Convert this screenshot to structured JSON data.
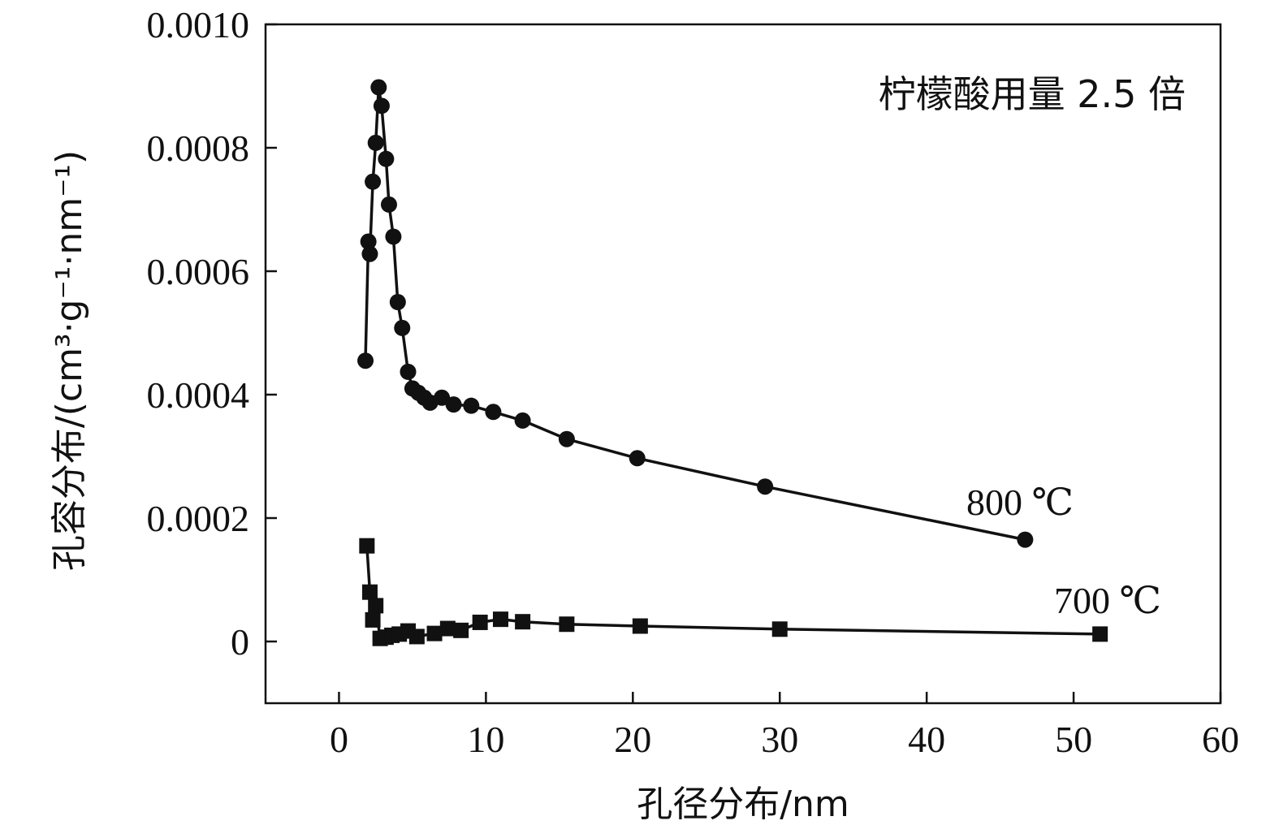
{
  "chart_data": {
    "type": "line",
    "title": "",
    "annotation": "柠檬酸用量 2.5 倍",
    "xlabel": "孔径分布/nm",
    "ylabel": "孔容分布/(cm³·g⁻¹·nm⁻¹)",
    "xlim": [
      -5,
      60
    ],
    "ylim": [
      -0.0001,
      0.001
    ],
    "xticks": [
      0,
      10,
      20,
      30,
      40,
      50,
      60
    ],
    "yticks": [
      0,
      0.0002,
      0.0004,
      0.0006,
      0.0008,
      0.001
    ],
    "xtick_labels": [
      "0",
      "10",
      "20",
      "30",
      "40",
      "50",
      "60"
    ],
    "ytick_labels": [
      "0",
      "0.0002",
      "0.0004",
      "0.0006",
      "0.0008",
      "0.0010"
    ],
    "grid": false,
    "series": [
      {
        "name": "800 ℃",
        "marker": "circle",
        "color": "#111111",
        "x": [
          1.8,
          2.0,
          2.1,
          2.3,
          2.5,
          2.7,
          2.9,
          3.2,
          3.4,
          3.7,
          4.0,
          4.3,
          4.7,
          5.0,
          5.4,
          5.8,
          6.2,
          7.0,
          7.8,
          9.0,
          10.5,
          12.5,
          15.5,
          20.3,
          29.0,
          46.7
        ],
        "y": [
          0.000455,
          0.000648,
          0.000628,
          0.000745,
          0.000808,
          0.000898,
          0.000868,
          0.000782,
          0.000708,
          0.000656,
          0.00055,
          0.000508,
          0.000437,
          0.00041,
          0.000403,
          0.000395,
          0.000387,
          0.000395,
          0.000384,
          0.000382,
          0.000372,
          0.000358,
          0.000328,
          0.000297,
          0.000251,
          0.000165
        ]
      },
      {
        "name": "700 ℃",
        "marker": "square",
        "color": "#111111",
        "x": [
          1.9,
          2.1,
          2.3,
          2.5,
          2.8,
          3.2,
          3.6,
          4.1,
          4.7,
          5.3,
          6.5,
          7.4,
          8.3,
          9.6,
          11.0,
          12.5,
          15.5,
          20.5,
          30.0,
          51.8
        ],
        "y": [
          0.000155,
          8e-05,
          3.5e-05,
          5.8e-05,
          5e-06,
          7e-06,
          1e-05,
          1.2e-05,
          1.7e-05,
          8e-06,
          1.3e-05,
          2.1e-05,
          1.8e-05,
          3.1e-05,
          3.6e-05,
          3.2e-05,
          2.8e-05,
          2.5e-05,
          2e-05,
          1.2e-05
        ]
      }
    ]
  }
}
